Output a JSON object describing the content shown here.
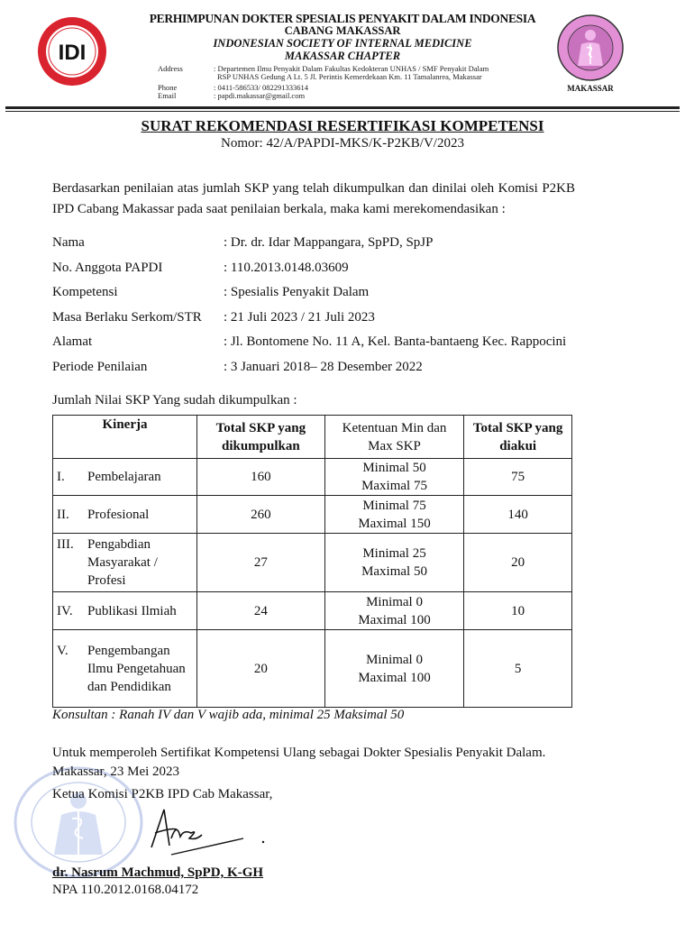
{
  "letterhead": {
    "org_name": "PERHIMPUNAN DOKTER SPESIALIS PENYAKIT DALAM INDONESIA",
    "branch": "CABANG MAKASSAR",
    "org_name_en": "INDONESIAN SOCIETY OF INTERNAL MEDICINE",
    "chapter": "MAKASSAR CHAPTER",
    "address_label": "Address",
    "address_line1": ": Departemen Ilmu Penyakit Dalam Fakultas  Kedokteran UNHAS / SMF  Penyakit Dalam",
    "address_line2": "RSP  UNHAS Gedung A Lt. 5 Jl. Perintis Kemerdekaan Km. 11 Tamalanrea, Makassar",
    "phone_label": "Phone",
    "phone": ": 0411-586533/  082291333614",
    "email_label": "Email",
    "email": ": papdi.makassar@gmail.com",
    "left_logo": {
      "text": "IDI",
      "color": "#d9232e"
    },
    "right_logo": {
      "caption": "MAKASSAR",
      "color": "#e28fd6"
    }
  },
  "title": "SURAT REKOMENDASI RESERTIFIKASI KOMPETENSI",
  "nomor": "Nomor:  42/A/PAPDI-MKS/K-P2KB/V/2023",
  "intro": "Berdasarkan penilaian atas jumlah SKP yang telah dikumpulkan dan dinilai oleh Komisi P2KB IPD Cabang Makassar pada saat penilaian berkala, maka kami merekomendasikan :",
  "fields": [
    {
      "label": "Nama",
      "value": ": Dr. dr. Idar Mappangara, SpPD, SpJP"
    },
    {
      "label": "No. Anggota PAPDI",
      "value": ": 110.2013.0148.03609"
    },
    {
      "label": "Kompetensi",
      "value": ": Spesialis Penyakit Dalam"
    },
    {
      "label": "Masa Berlaku Serkom/STR",
      "value": ": 21 Juli 2023 / 21 Juli 2023"
    },
    {
      "label": "Alamat",
      "value": ": Jl. Bontomene No. 11 A, Kel. Banta-bantaeng Kec. Rappocini"
    },
    {
      "label": "Periode Penilaian",
      "value": ": 3 Januari 2018– 28 Desember 2022"
    }
  ],
  "table_caption": "Jumlah Nilai SKP Yang sudah dikumpulkan :",
  "table": {
    "headers": [
      "Kinerja",
      "Total SKP yang dikumpulkan",
      "Ketentuan Min dan Max SKP",
      "Total SKP yang diakui"
    ],
    "rows": [
      {
        "num": "I.",
        "kinerja": "Pembelajaran",
        "total": "160",
        "min": "Minimal 50",
        "max": "Maximal 75",
        "diakui": "75"
      },
      {
        "num": "II.",
        "kinerja": "Profesional",
        "total": "260",
        "min": "Minimal 75",
        "max": "Maximal 150",
        "diakui": "140"
      },
      {
        "num": "III.",
        "kinerja": "Pengabdian Masyarakat / Profesi",
        "total": "27",
        "min": "Minimal 25",
        "max": "Maximal 50",
        "diakui": "20"
      },
      {
        "num": "IV.",
        "kinerja": "Publikasi Ilmiah",
        "total": "24",
        "min": "Minimal 0",
        "max": "Maximal 100",
        "diakui": "10"
      },
      {
        "num": "V.",
        "kinerja": "Pengembangan Ilmu Pengetahuan dan Pendidikan",
        "total": "20",
        "min": "Minimal 0",
        "max": "Maximal 100",
        "diakui": "5"
      }
    ]
  },
  "note": "Konsultan : Ranah IV dan V wajib ada, minimal 25 Maksimal 50",
  "closing": "Untuk memperoleh Sertifikat Kompetensi Ulang sebagai Dokter Spesialis Penyakit Dalam.",
  "place_date": "Makassar, 23 Mei 2023",
  "signer_title": "Ketua Komisi P2KB IPD Cab Makassar,",
  "signer_name": "dr. Nasrum Machmud, SpPD, K-GH",
  "signer_npa": "NPA 110.2012.0168.04172",
  "stamp": {
    "text": "PERSATUAN AHLI PENYAKIT DALAM INDONESIA CAB MAKASSAR",
    "color": "#9fb0e0"
  }
}
